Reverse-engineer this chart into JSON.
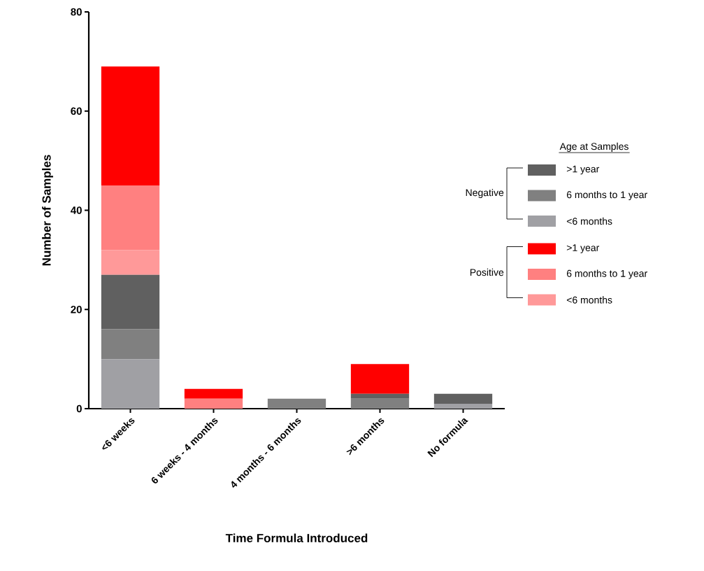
{
  "chart_data": {
    "type": "bar",
    "stacked": true,
    "xlabel": "Time Formula Introduced",
    "ylabel": "Number of Samples",
    "legend_title": "Age at Samples",
    "legend": "right",
    "categories": [
      "<6 weeks",
      "6 weeks - 4 months",
      "4 months - 6 months",
      ">6 months",
      "No formula"
    ],
    "ylim": [
      0,
      80
    ],
    "yticks": [
      0,
      20,
      40,
      60,
      80
    ],
    "annotations": [
      "Negative",
      "Positive"
    ],
    "series": [
      {
        "name": "<6 months",
        "color": "#a0a0a4",
        "values": [
          10,
          0,
          0,
          0,
          1
        ]
      },
      {
        "name": "6 months to 1 year",
        "color": "#808080",
        "values": [
          6,
          0,
          2,
          2,
          0
        ]
      },
      {
        "name": ">1 year",
        "color": "#606060",
        "values": [
          11,
          0,
          0,
          1,
          2
        ]
      },
      {
        "name": "<6 months",
        "color": "#ff9999",
        "values": [
          5,
          0,
          0,
          0,
          0
        ]
      },
      {
        "name": "6 months to 1 year",
        "color": "#ff8080",
        "values": [
          13,
          2,
          0,
          0,
          0
        ]
      },
      {
        "name": ">1 year",
        "color": "#ff0000",
        "values": [
          24,
          2,
          0,
          6,
          0
        ]
      }
    ]
  }
}
